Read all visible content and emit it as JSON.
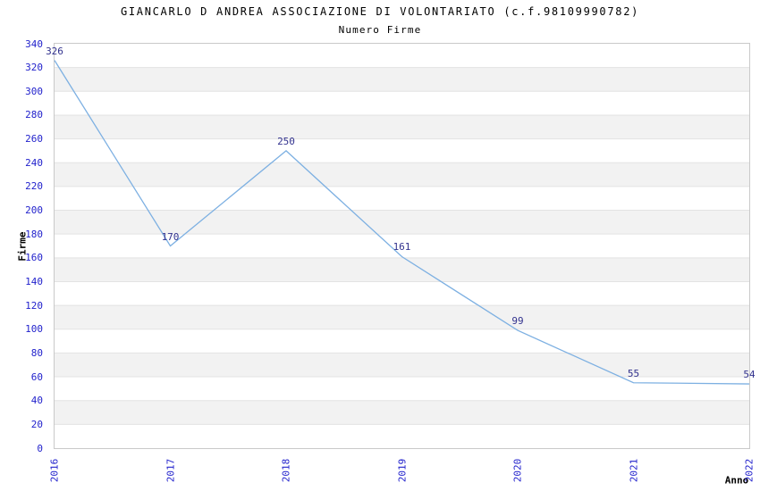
{
  "header": {
    "title": "GIANCARLO D ANDREA ASSOCIAZIONE DI VOLONTARIATO (c.f.98109990782)",
    "subtitle": "Numero Firme"
  },
  "chart_data": {
    "type": "line",
    "x": [
      "2016",
      "2017",
      "2018",
      "2019",
      "2020",
      "2021",
      "2022"
    ],
    "series": [
      {
        "name": "Numero Firme",
        "values": [
          326,
          170,
          250,
          161,
          99,
          55,
          54
        ]
      }
    ],
    "title": "GIANCARLO D ANDREA ASSOCIAZIONE DI VOLONTARIATO (c.f.98109990782)",
    "subtitle": "Numero Firme",
    "xlabel": "Anno",
    "ylabel": "Firme",
    "ylim": [
      0,
      340
    ],
    "ytick_step": 20,
    "legend": "none",
    "grid": "horizontal gridlines with alternating white/gray bands",
    "data_labels_visible": true,
    "colors": {
      "line": "#7db0e2",
      "tick_label": "#2222cc",
      "data_label": "#32328e",
      "band_alt": "#f2f2f2",
      "gridline": "#e3e3e3",
      "plot_border": "#c9c9c9",
      "title_text": "#000000"
    }
  }
}
